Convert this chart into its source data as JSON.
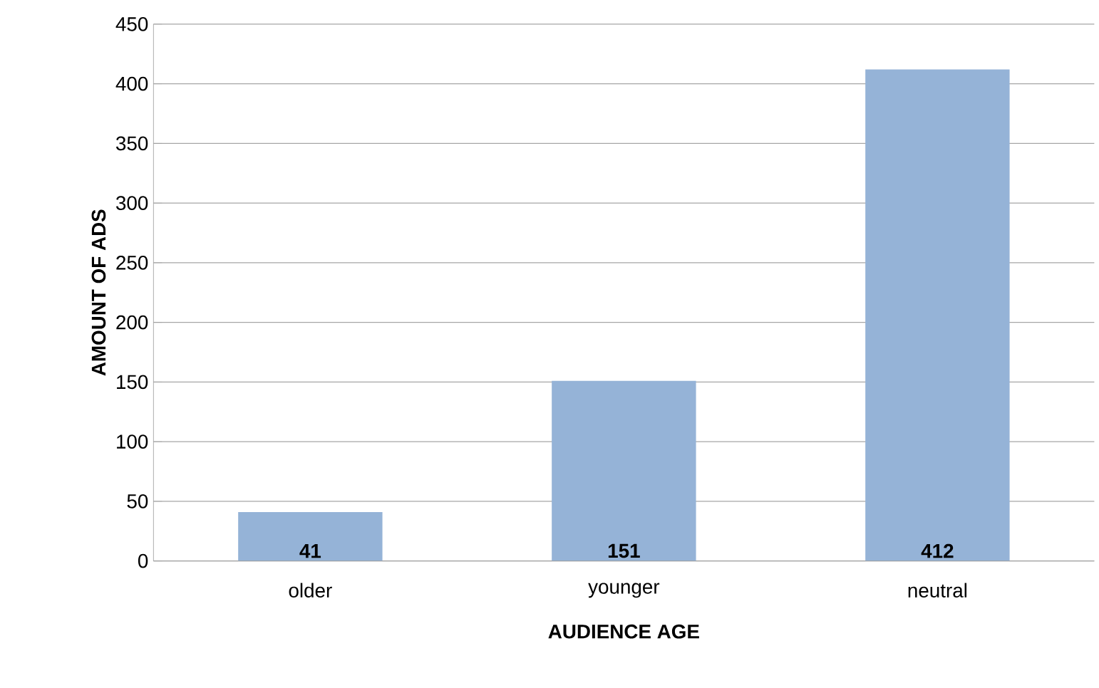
{
  "chart_data": {
    "type": "bar",
    "xlabel": "AUDIENCE AGE",
    "ylabel": "AMOUNT OF ADS",
    "categories": [
      "older",
      "younger",
      "neutral"
    ],
    "values": [
      41,
      151,
      412
    ],
    "color": "#95b3d7",
    "ylim": [
      0,
      450
    ],
    "yticks": [
      0,
      50,
      100,
      150,
      200,
      250,
      300,
      350,
      400,
      450
    ],
    "grid": "y",
    "data_labels": true
  }
}
